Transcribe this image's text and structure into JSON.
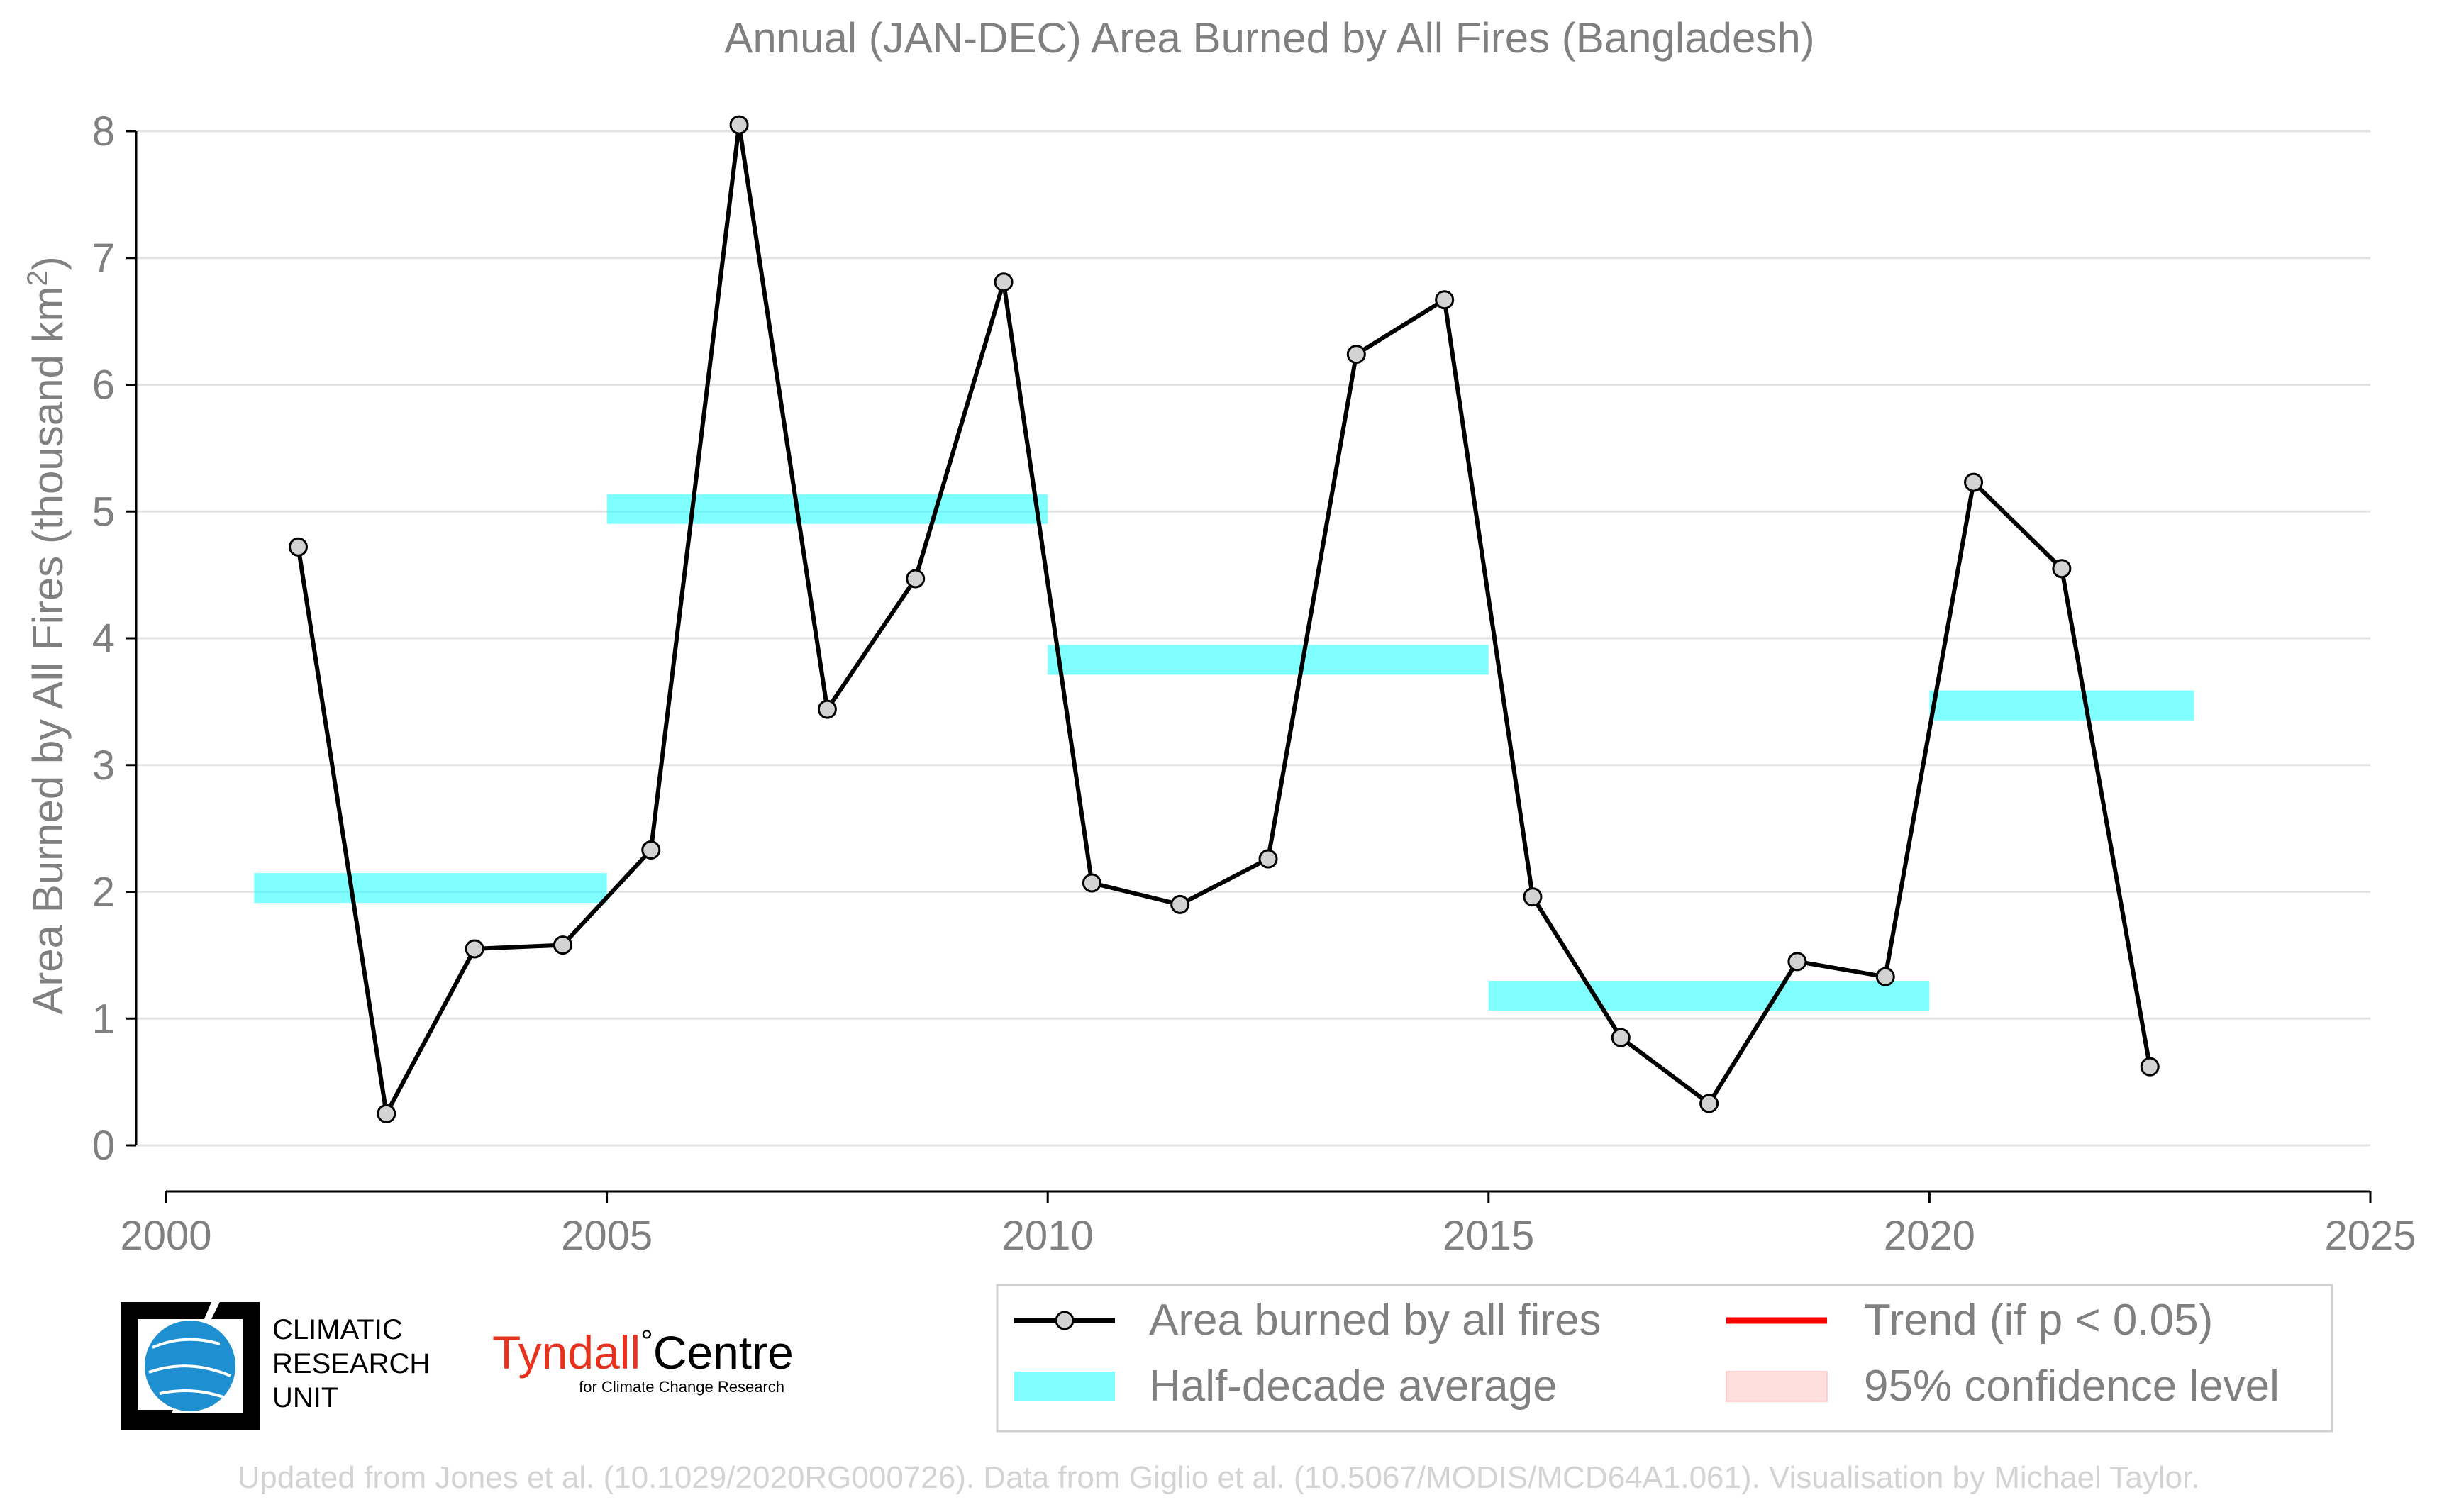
{
  "chart_data": {
    "type": "line",
    "title": "Annual (JAN-DEC) Area Burned by All Fires (Bangladesh)",
    "ylabel_main": "Area Burned by All Fires (thousand km",
    "ylabel_sup": "2",
    "ylabel_end": ")",
    "xlim": [
      2000,
      2025
    ],
    "ylim": [
      0,
      8
    ],
    "x_ticks": [
      "2000",
      "2005",
      "2010",
      "2015",
      "2020",
      "2025"
    ],
    "y_ticks": [
      "0",
      "1",
      "2",
      "3",
      "4",
      "5",
      "6",
      "7",
      "8"
    ],
    "grid": "horizontal",
    "series": [
      {
        "name": "Area burned by all fires",
        "color": "#000000",
        "marker_fill": "#d3d3d3",
        "x": [
          2001.5,
          2002.5,
          2003.5,
          2004.5,
          2005.5,
          2006.5,
          2007.5,
          2008.5,
          2009.5,
          2010.5,
          2011.5,
          2012.5,
          2013.5,
          2014.5,
          2015.5,
          2016.5,
          2017.5,
          2018.5,
          2019.5,
          2020.5,
          2021.5,
          2022.5
        ],
        "y": [
          4.72,
          0.25,
          1.55,
          1.58,
          2.33,
          8.05,
          3.44,
          4.47,
          6.81,
          2.07,
          1.9,
          2.26,
          6.24,
          6.67,
          1.96,
          0.85,
          0.33,
          1.45,
          1.33,
          5.23,
          4.55,
          0.62
        ]
      }
    ],
    "half_decade_average": {
      "name": "Half-decade average",
      "color": "#00ffff",
      "segments": [
        {
          "x_start": 2001,
          "x_end": 2005,
          "y": 2.03
        },
        {
          "x_start": 2005,
          "x_end": 2010,
          "y": 5.02
        },
        {
          "x_start": 2010,
          "x_end": 2015,
          "y": 3.83
        },
        {
          "x_start": 2015,
          "x_end": 2020,
          "y": 1.18
        },
        {
          "x_start": 2020,
          "x_end": 2023,
          "y": 3.47
        }
      ]
    },
    "legend": {
      "placement": "bottom-right",
      "entries": [
        {
          "label": "Area burned by all fires",
          "kind": "line-marker",
          "color": "#000000"
        },
        {
          "label": "Trend (if p < 0.05)",
          "kind": "line",
          "color": "#ff0000"
        },
        {
          "label": "Half-decade average",
          "kind": "band",
          "color": "#00ffff"
        },
        {
          "label": "95% confidence level",
          "kind": "band",
          "color": "#ffb6b6"
        }
      ]
    }
  },
  "logos": {
    "cru_line1": "CLIMATIC",
    "cru_line2": "RESEARCH",
    "cru_line3": "UNIT",
    "tyndall_name": "Tyndall",
    "tyndall_degree": "°",
    "tyndall_centre": "Centre",
    "tyndall_sub": "for Climate Change Research"
  },
  "footer": "Updated from Jones et al. (10.1029/2020RG000726). Data from Giglio et al. (10.5067/MODIS/MCD64A1.061). Visualisation by Michael Taylor."
}
